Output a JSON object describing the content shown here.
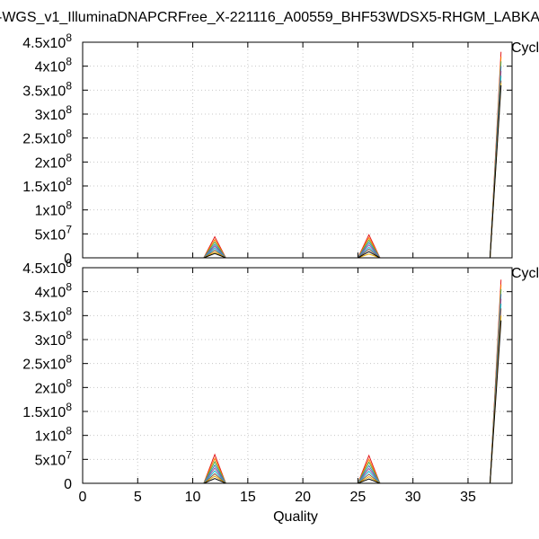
{
  "chart_data": {
    "type": "line",
    "title": "-WGS_v1_IlluminaDNAPCRFree_X-221116_A00559_BHF53WDSX5-RHGM_LABKA",
    "xlabel": "Quality",
    "ylabel": "",
    "xlim": [
      0,
      39
    ],
    "xticks": [
      0,
      5,
      10,
      15,
      20,
      25,
      30,
      35
    ],
    "grid": true,
    "legend_placement": "right",
    "panels": [
      {
        "legend_label": "Cycl",
        "ylim": [
          0,
          450000000
        ],
        "yticks": [
          {
            "value": 0,
            "mantissa": "0",
            "exp": ""
          },
          {
            "value": 50000000,
            "mantissa": "5x10",
            "exp": "7"
          },
          {
            "value": 100000000,
            "mantissa": "1x10",
            "exp": "8"
          },
          {
            "value": 150000000,
            "mantissa": "1.5x10",
            "exp": "8"
          },
          {
            "value": 200000000,
            "mantissa": "2x10",
            "exp": "8"
          },
          {
            "value": 250000000,
            "mantissa": "2.5x10",
            "exp": "8"
          },
          {
            "value": 300000000,
            "mantissa": "3x10",
            "exp": "8"
          },
          {
            "value": 350000000,
            "mantissa": "3.5x10",
            "exp": "8"
          },
          {
            "value": 400000000,
            "mantissa": "4x10",
            "exp": "8"
          },
          {
            "value": 450000000,
            "mantissa": "4.5x10",
            "exp": "8"
          }
        ],
        "series": [
          {
            "color": "#e41a1c",
            "points": [
              [
                11,
                0
              ],
              [
                12,
                44000000
              ],
              [
                13,
                0
              ],
              [
                25,
                0
              ],
              [
                26,
                48000000
              ],
              [
                27,
                0
              ],
              [
                37,
                0
              ],
              [
                38,
                430000000
              ]
            ]
          },
          {
            "color": "#ff7f00",
            "points": [
              [
                11,
                0
              ],
              [
                12,
                38000000
              ],
              [
                13,
                0
              ],
              [
                25,
                0
              ],
              [
                26,
                42000000
              ],
              [
                27,
                0
              ],
              [
                37,
                0
              ],
              [
                38,
                420000000
              ]
            ]
          },
          {
            "color": "#4daf4a",
            "points": [
              [
                11,
                0
              ],
              [
                12,
                33000000
              ],
              [
                13,
                0
              ],
              [
                25,
                0
              ],
              [
                26,
                37000000
              ],
              [
                27,
                0
              ],
              [
                37,
                0
              ],
              [
                38,
                410000000
              ]
            ]
          },
          {
            "color": "#377eb8",
            "points": [
              [
                11,
                0
              ],
              [
                12,
                28000000
              ],
              [
                13,
                0
              ],
              [
                25,
                0
              ],
              [
                26,
                32000000
              ],
              [
                27,
                0
              ],
              [
                37,
                0
              ],
              [
                38,
                400000000
              ]
            ]
          },
          {
            "color": "#984ea3",
            "points": [
              [
                11,
                0
              ],
              [
                12,
                24000000
              ],
              [
                13,
                0
              ],
              [
                25,
                0
              ],
              [
                26,
                27000000
              ],
              [
                27,
                0
              ],
              [
                37,
                0
              ],
              [
                38,
                390000000
              ]
            ]
          },
          {
            "color": "#17becf",
            "points": [
              [
                11,
                0
              ],
              [
                12,
                20000000
              ],
              [
                13,
                0
              ],
              [
                25,
                0
              ],
              [
                26,
                22000000
              ],
              [
                27,
                0
              ],
              [
                37,
                0
              ],
              [
                38,
                380000000
              ]
            ]
          },
          {
            "color": "#8c564b",
            "points": [
              [
                11,
                0
              ],
              [
                12,
                16000000
              ],
              [
                13,
                0
              ],
              [
                25,
                0
              ],
              [
                26,
                18000000
              ],
              [
                27,
                0
              ],
              [
                37,
                0
              ],
              [
                38,
                370000000
              ]
            ]
          },
          {
            "color": "#e6ab02",
            "points": [
              [
                11,
                0
              ],
              [
                12,
                12000000
              ],
              [
                13,
                0
              ],
              [
                25,
                0
              ],
              [
                26,
                8000000
              ],
              [
                27,
                0
              ],
              [
                37,
                0
              ],
              [
                38,
                365000000
              ]
            ]
          },
          {
            "color": "#000000",
            "points": [
              [
                11,
                0
              ],
              [
                12,
                9000000
              ],
              [
                13,
                0
              ],
              [
                25,
                0
              ],
              [
                26,
                13000000
              ],
              [
                27,
                0
              ],
              [
                37,
                0
              ],
              [
                38,
                360000000
              ]
            ]
          }
        ]
      },
      {
        "legend_label": "Cycl",
        "ylim": [
          0,
          450000000
        ],
        "yticks": [
          {
            "value": 0,
            "mantissa": "0",
            "exp": ""
          },
          {
            "value": 50000000,
            "mantissa": "5x10",
            "exp": "7"
          },
          {
            "value": 100000000,
            "mantissa": "1x10",
            "exp": "8"
          },
          {
            "value": 150000000,
            "mantissa": "1.5x10",
            "exp": "8"
          },
          {
            "value": 200000000,
            "mantissa": "2x10",
            "exp": "8"
          },
          {
            "value": 250000000,
            "mantissa": "2.5x10",
            "exp": "8"
          },
          {
            "value": 300000000,
            "mantissa": "3x10",
            "exp": "8"
          },
          {
            "value": 350000000,
            "mantissa": "3.5x10",
            "exp": "8"
          },
          {
            "value": 400000000,
            "mantissa": "4x10",
            "exp": "8"
          },
          {
            "value": 450000000,
            "mantissa": "4.5x10",
            "exp": "8"
          }
        ],
        "series": [
          {
            "color": "#e41a1c",
            "points": [
              [
                11,
                0
              ],
              [
                12,
                60000000
              ],
              [
                13,
                0
              ],
              [
                25,
                0
              ],
              [
                26,
                58000000
              ],
              [
                27,
                0
              ],
              [
                37,
                0
              ],
              [
                38,
                425000000
              ]
            ]
          },
          {
            "color": "#ff7f00",
            "points": [
              [
                11,
                0
              ],
              [
                12,
                52000000
              ],
              [
                13,
                0
              ],
              [
                25,
                0
              ],
              [
                26,
                50000000
              ],
              [
                27,
                0
              ],
              [
                37,
                0
              ],
              [
                38,
                415000000
              ]
            ]
          },
          {
            "color": "#4daf4a",
            "points": [
              [
                11,
                0
              ],
              [
                12,
                45000000
              ],
              [
                13,
                0
              ],
              [
                25,
                0
              ],
              [
                26,
                44000000
              ],
              [
                27,
                0
              ],
              [
                37,
                0
              ],
              [
                38,
                405000000
              ]
            ]
          },
          {
            "color": "#377eb8",
            "points": [
              [
                11,
                0
              ],
              [
                12,
                38000000
              ],
              [
                13,
                0
              ],
              [
                25,
                0
              ],
              [
                26,
                37000000
              ],
              [
                27,
                0
              ],
              [
                37,
                0
              ],
              [
                38,
                395000000
              ]
            ]
          },
          {
            "color": "#984ea3",
            "points": [
              [
                11,
                0
              ],
              [
                12,
                32000000
              ],
              [
                13,
                0
              ],
              [
                25,
                0
              ],
              [
                26,
                31000000
              ],
              [
                27,
                0
              ],
              [
                37,
                0
              ],
              [
                38,
                385000000
              ]
            ]
          },
          {
            "color": "#17becf",
            "points": [
              [
                11,
                0
              ],
              [
                12,
                26000000
              ],
              [
                13,
                0
              ],
              [
                25,
                0
              ],
              [
                26,
                25000000
              ],
              [
                27,
                0
              ],
              [
                37,
                0
              ],
              [
                38,
                375000000
              ]
            ]
          },
          {
            "color": "#8c564b",
            "points": [
              [
                11,
                0
              ],
              [
                12,
                20000000
              ],
              [
                13,
                0
              ],
              [
                25,
                0
              ],
              [
                26,
                19000000
              ],
              [
                27,
                0
              ],
              [
                37,
                0
              ],
              [
                38,
                365000000
              ]
            ]
          },
          {
            "color": "#e6ab02",
            "points": [
              [
                11,
                0
              ],
              [
                12,
                15000000
              ],
              [
                13,
                0
              ],
              [
                25,
                0
              ],
              [
                26,
                14000000
              ],
              [
                27,
                0
              ],
              [
                37,
                0
              ],
              [
                38,
                350000000
              ]
            ]
          },
          {
            "color": "#000000",
            "points": [
              [
                11,
                0
              ],
              [
                12,
                10000000
              ],
              [
                13,
                0
              ],
              [
                25,
                0
              ],
              [
                26,
                9000000
              ],
              [
                27,
                0
              ],
              [
                37,
                0
              ],
              [
                38,
                340000000
              ]
            ]
          }
        ]
      }
    ]
  }
}
